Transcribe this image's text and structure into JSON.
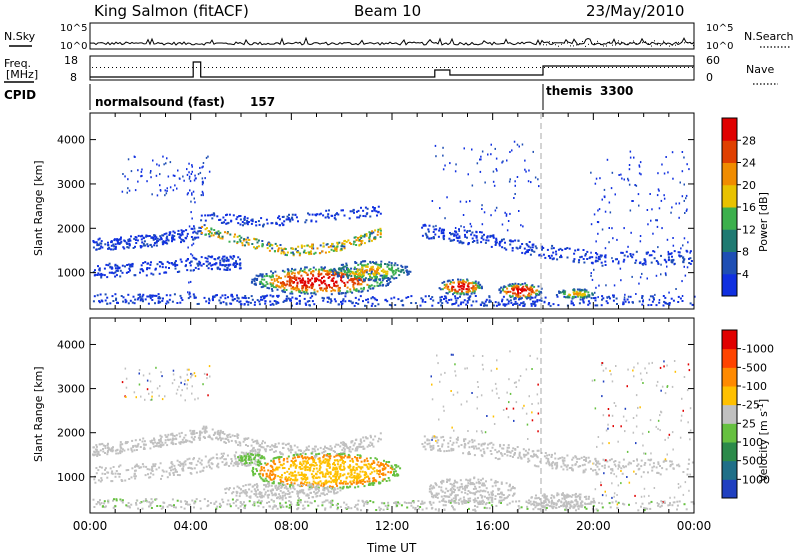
{
  "header": {
    "station": "King Salmon (fitACF)",
    "beam": "Beam 10",
    "date": "23/May/2010"
  },
  "noise_panel": {
    "left_label": "N.Sky",
    "right_label": "N.Search",
    "left_ticks": [
      "10^5",
      "10^0"
    ],
    "right_ticks": [
      "10^5",
      "10^0"
    ]
  },
  "freq_panel": {
    "left_label_1": "Freq.",
    "left_label_2": "[MHz]",
    "right_label": "Nave",
    "left_ticks": [
      "18",
      "8"
    ],
    "right_ticks": [
      "60",
      "0"
    ]
  },
  "cpid_panel": {
    "label": "CPID",
    "modes": [
      {
        "name": "normalsound (fast)",
        "id": "157",
        "start_hour": 0
      },
      {
        "name": "themis",
        "id": "3300",
        "start_hour": 18
      }
    ]
  },
  "chart_data": [
    {
      "type": "heatmap",
      "panel": "power",
      "xlabel": "",
      "ylabel": "Slant Range [km]",
      "xlim": [
        0,
        24
      ],
      "ylim": [
        180,
        4600
      ],
      "y_ticks": [
        "1000",
        "2000",
        "3000",
        "4000"
      ],
      "colorbar": {
        "label": "Power [dB]",
        "ticks": [
          "4",
          "8",
          "12",
          "16",
          "20",
          "24",
          "28"
        ],
        "colors": [
          "#1030e0",
          "#1f4fb4",
          "#1f7a72",
          "#3cb04c",
          "#e8c200",
          "#f08c00",
          "#e04000",
          "#e00000"
        ]
      }
    },
    {
      "type": "heatmap",
      "panel": "velocity",
      "xlabel": "Time UT",
      "ylabel": "Slant Range [km]",
      "xlim": [
        0,
        24
      ],
      "ylim": [
        180,
        4600
      ],
      "x_ticks": [
        "00:00",
        "04:00",
        "08:00",
        "12:00",
        "16:00",
        "20:00",
        "00:00"
      ],
      "y_ticks": [
        "1000",
        "2000",
        "3000",
        "4000"
      ],
      "colorbar": {
        "label": "Velocity [m s",
        "label_superscript": "-1",
        "label_close": "]",
        "ticks": [
          "1000",
          "500",
          "100",
          "25",
          "-25",
          "-100",
          "-500",
          "-1000"
        ],
        "colors": [
          "#2040c0",
          "#1f6f88",
          "#2b8a4a",
          "#66c040",
          "#c0c0c0",
          "#ffc000",
          "#ff8a00",
          "#ff4400",
          "#e00000"
        ]
      }
    }
  ]
}
